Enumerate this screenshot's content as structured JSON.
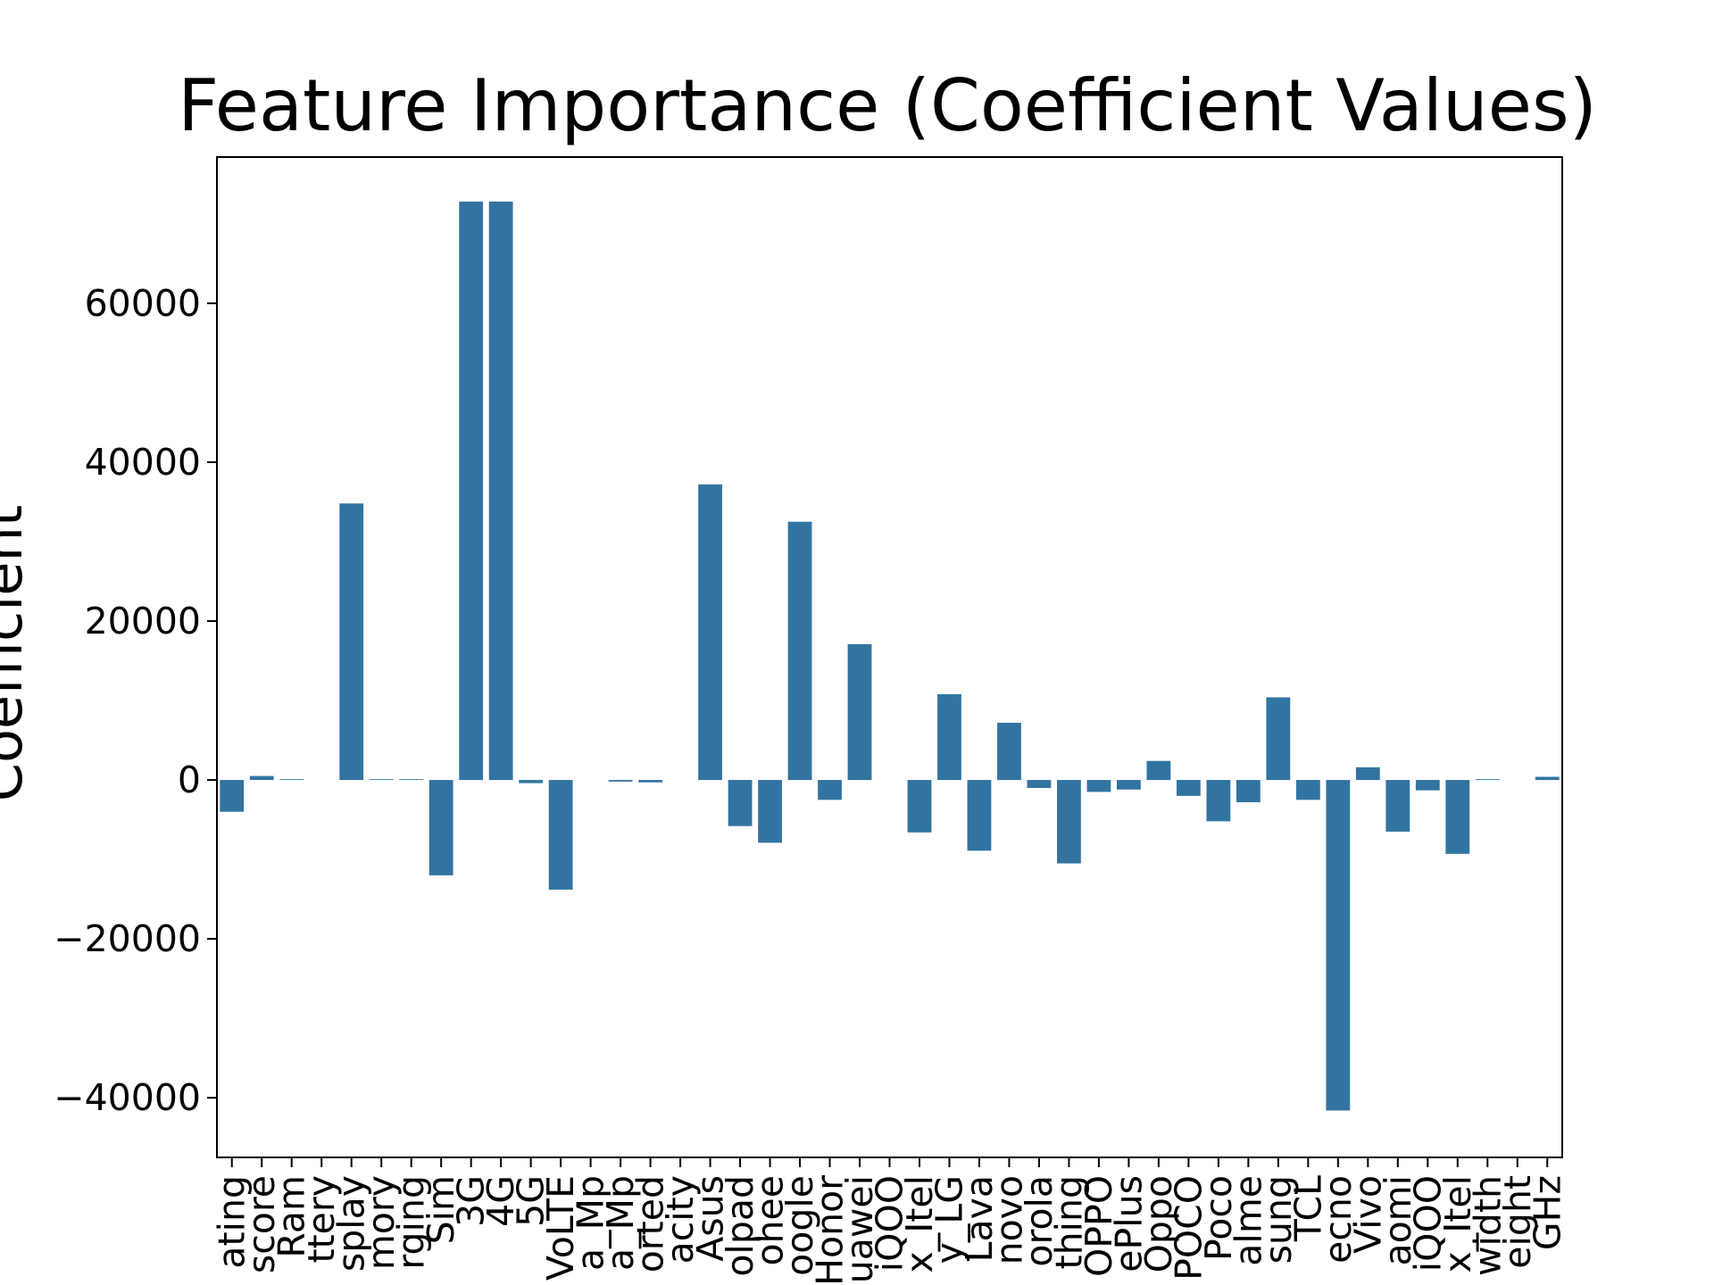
{
  "chart_data": {
    "type": "bar",
    "title": "Feature Importance (Coefficient Values)",
    "ylabel": "Coefficient",
    "categories": [
      "ating",
      "score",
      "Ram",
      "ttery",
      "splay",
      "mory",
      "rging",
      "Sim",
      "3G",
      "4G",
      "5G",
      "VoLTE",
      "a_Mp",
      "a_Mp",
      "orted",
      "acity",
      "Asus",
      "olpad",
      "ohee",
      "oogle",
      "Honor",
      "uawei",
      "iQOO",
      "x_Itel",
      "y_LG",
      "Lava",
      "novo",
      "orola",
      "thing",
      "OPPO",
      "ePlus",
      "Oppo",
      "POCO",
      "Poco",
      "alme",
      "sung",
      "TCL",
      "ecno",
      "Vivo",
      "aomi",
      "iQOO",
      "x_Itel",
      "width",
      "eight",
      "GHz"
    ],
    "values": [
      -4000,
      500,
      100,
      0,
      34800,
      100,
      100,
      -12000,
      72800,
      72800,
      -400,
      -13800,
      0,
      -200,
      -300,
      0,
      37200,
      -5800,
      -7900,
      32500,
      -2500,
      17100,
      0,
      -6600,
      10800,
      -8900,
      7200,
      -1000,
      -10500,
      -1500,
      -1200,
      2400,
      -2000,
      -5200,
      -2800,
      10400,
      -2500,
      -41600,
      1600,
      -6500,
      -1300,
      -9300,
      100,
      0,
      400
    ],
    "color": "#3274a1",
    "ylim": [
      -47500,
      78400
    ],
    "yticks": [
      {
        "value": -40000,
        "label": "−40000"
      },
      {
        "value": -20000,
        "label": "−20000"
      },
      0,
      20000,
      40000,
      60000
    ],
    "grid": false
  }
}
